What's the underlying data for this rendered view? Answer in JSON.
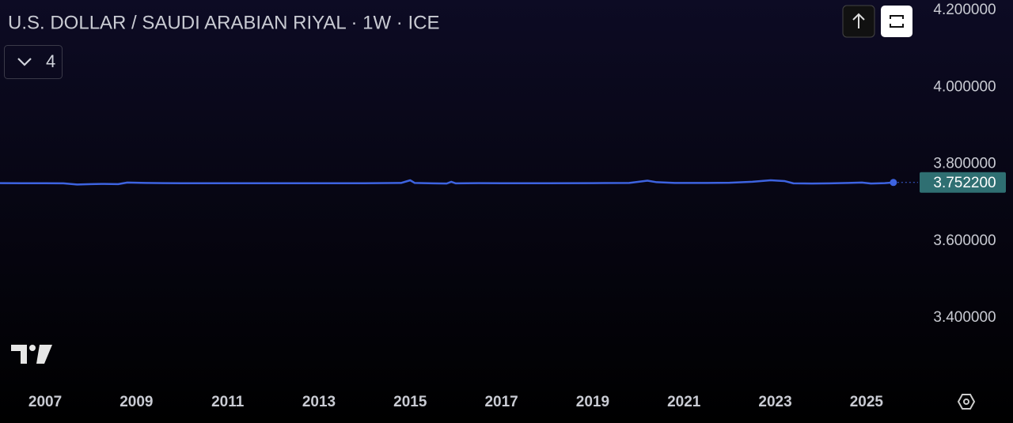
{
  "chart_data": {
    "type": "line",
    "title": "U.S. DOLLAR / SAUDI ARABIAN RIYAL · 1W · ICE",
    "color": "#3d63e0",
    "x": [
      2006.01,
      2006.5,
      2007.0,
      2007.4,
      2007.7,
      2008.0,
      2008.3,
      2008.6,
      2008.8,
      2009.2,
      2009.6,
      2010.0,
      2011.0,
      2012.0,
      2013.0,
      2014.0,
      2014.8,
      2015.0,
      2015.1,
      2015.5,
      2015.8,
      2015.9,
      2016.0,
      2016.5,
      2017.0,
      2018.0,
      2019.0,
      2019.8,
      2020.2,
      2020.4,
      2020.8,
      2021.5,
      2022.0,
      2022.5,
      2022.9,
      2023.2,
      2023.4,
      2023.8,
      2024.2,
      2024.6,
      2024.9,
      2025.1,
      2025.4,
      2025.59
    ],
    "values": [
      3.7505,
      3.7502,
      3.7503,
      3.75,
      3.747,
      3.748,
      3.7485,
      3.748,
      3.752,
      3.751,
      3.7505,
      3.7503,
      3.7502,
      3.7503,
      3.7502,
      3.7502,
      3.751,
      3.758,
      3.751,
      3.75,
      3.7495,
      3.754,
      3.75,
      3.7505,
      3.7502,
      3.7503,
      3.7505,
      3.751,
      3.757,
      3.753,
      3.751,
      3.751,
      3.7515,
      3.754,
      3.758,
      3.756,
      3.75,
      3.7495,
      3.75,
      3.751,
      3.752,
      3.7495,
      3.7505,
      3.7522
    ],
    "last_price": {
      "value": 3.7522,
      "label": "3.752200"
    },
    "xlim": [
      2006.01,
      2026.13
    ],
    "xticks": [
      2007,
      2009,
      2011,
      2013,
      2015,
      2017,
      2019,
      2021,
      2023,
      2025
    ],
    "ylim": [
      3.219,
      4.227
    ],
    "yticks": [
      {
        "value": 3.4,
        "label": "3.400000"
      },
      {
        "value": 3.6,
        "label": "3.600000"
      },
      {
        "value": 3.8,
        "label": "3.800000"
      },
      {
        "value": 4.0,
        "label": "4.000000"
      },
      {
        "value": 4.2,
        "label": "4.200000"
      }
    ]
  },
  "ui": {
    "indicator_count": 4
  }
}
